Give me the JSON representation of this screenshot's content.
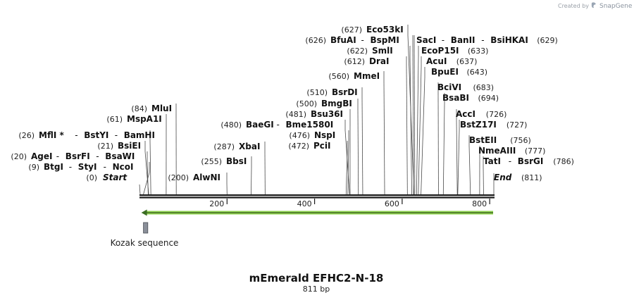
{
  "credit": {
    "prefix": "Created by",
    "brand": "SnapGene",
    "icon": "snapgene-logo-icon"
  },
  "sequence": {
    "name": "mEmerald EFHC2-N-18",
    "length_label": "811 bp",
    "length": 811
  },
  "axis": {
    "ticks": [
      200,
      400,
      600,
      800
    ]
  },
  "feature": {
    "label": "Kozak sequence",
    "start": 9,
    "end": 19,
    "color": "#8a8f99"
  },
  "orf": {
    "start": 1,
    "end": 811,
    "direction": "reverse",
    "color": "#8fd14f",
    "icon": "arrow-left-icon"
  },
  "markers": {
    "start": {
      "pos": "(0)",
      "label": "Start",
      "value": 0
    },
    "end": {
      "label": "End",
      "pos": "(811)",
      "value": 811
    }
  },
  "sites": [
    {
      "pos": "(9)",
      "names": [
        "BtgI",
        "StyI",
        "NcoI"
      ],
      "values": [
        9,
        9,
        9
      ]
    },
    {
      "pos": "(20)",
      "names": [
        "AgeI",
        "BsrFI",
        "BsaWI"
      ],
      "values": [
        20,
        20,
        20
      ]
    },
    {
      "pos": "(21)",
      "names": [
        "BsiEI"
      ],
      "values": [
        21
      ]
    },
    {
      "pos": "(26)",
      "names": [
        "MflI *",
        "BstYI",
        "BamHI"
      ],
      "values": [
        26,
        26,
        26
      ]
    },
    {
      "pos": "(61)",
      "names": [
        "MspA1I"
      ],
      "values": [
        61
      ]
    },
    {
      "pos": "(84)",
      "names": [
        "MluI"
      ],
      "values": [
        84
      ]
    },
    {
      "pos": "(200)",
      "names": [
        "AlwNI"
      ],
      "values": [
        200
      ]
    },
    {
      "pos": "(255)",
      "names": [
        "BbsI"
      ],
      "values": [
        255
      ]
    },
    {
      "pos": "(287)",
      "names": [
        "XbaI"
      ],
      "values": [
        287
      ]
    },
    {
      "pos": "(480)",
      "names": [
        "BaeGI",
        "Bme1580I"
      ],
      "values": [
        480,
        480
      ]
    },
    {
      "pos": "(472)",
      "names": [
        "PciI"
      ],
      "values": [
        472
      ]
    },
    {
      "pos": "(476)",
      "names": [
        "NspI"
      ],
      "values": [
        476
      ]
    },
    {
      "pos": "(481)",
      "names": [
        "Bsu36I"
      ],
      "values": [
        481
      ]
    },
    {
      "pos": "(500)",
      "names": [
        "BmgBI"
      ],
      "values": [
        500
      ]
    },
    {
      "pos": "(510)",
      "names": [
        "BsrDI"
      ],
      "values": [
        510
      ]
    },
    {
      "pos": "(560)",
      "names": [
        "MmeI"
      ],
      "values": [
        560
      ]
    },
    {
      "pos": "(612)",
      "names": [
        "DraI"
      ],
      "values": [
        612
      ]
    },
    {
      "pos": "(622)",
      "names": [
        "SmlI"
      ],
      "values": [
        622
      ]
    },
    {
      "pos": "(626)",
      "names": [
        "BfuAI",
        "BspMI"
      ],
      "values": [
        626,
        626
      ]
    },
    {
      "pos": "(627)",
      "names": [
        "Eco53kI"
      ],
      "values": [
        627
      ]
    },
    {
      "pos": "(629)",
      "names": [
        "SacI",
        "BanII",
        "BsiHKAI"
      ],
      "values": [
        629,
        629,
        629
      ]
    },
    {
      "pos": "(633)",
      "names": [
        "EcoP15I"
      ],
      "values": [
        633
      ]
    },
    {
      "pos": "(637)",
      "names": [
        "AcuI"
      ],
      "values": [
        637
      ]
    },
    {
      "pos": "(643)",
      "names": [
        "BpuEI"
      ],
      "values": [
        643
      ]
    },
    {
      "pos": "(683)",
      "names": [
        "BciVI"
      ],
      "values": [
        683
      ]
    },
    {
      "pos": "(694)",
      "names": [
        "BsaBI"
      ],
      "values": [
        694
      ]
    },
    {
      "pos": "(726)",
      "names": [
        "AccI"
      ],
      "values": [
        726
      ]
    },
    {
      "pos": "(727)",
      "names": [
        "BstZ17I"
      ],
      "values": [
        727
      ]
    },
    {
      "pos": "(756)",
      "names": [
        "BstEII"
      ],
      "values": [
        756
      ]
    },
    {
      "pos": "(777)",
      "names": [
        "NmeAIII"
      ],
      "values": [
        777
      ]
    },
    {
      "pos": "(786)",
      "names": [
        "TatI",
        "BsrGI"
      ],
      "values": [
        786,
        786
      ]
    }
  ]
}
